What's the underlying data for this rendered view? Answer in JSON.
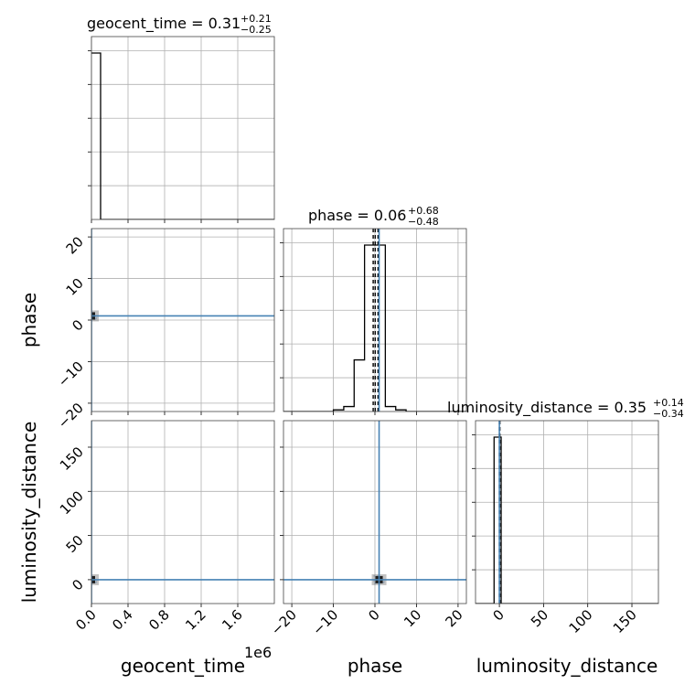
{
  "colors": {
    "truth": "#4682b4",
    "hist": "#000000",
    "grid": "#b0b0b0",
    "density": "#7a7a7a",
    "points": "#5b8fc7"
  },
  "titles": {
    "geocent_time": {
      "name": "geocent_time",
      "median": "0.31",
      "plus": "+0.21",
      "minus": "−0.25"
    },
    "phase": {
      "name": "phase",
      "median": "0.06",
      "plus": "+0.68",
      "minus": "−0.48"
    },
    "luminosity_distance": {
      "name": "luminosity_distance",
      "median": "0.35",
      "plus": "+0.14",
      "minus": "−0.34"
    }
  },
  "axis_labels": {
    "x_geocent_time": "geocent_time",
    "x_phase": "phase",
    "x_luminosity_distance": "luminosity_distance",
    "y_phase": "phase",
    "y_luminosity_distance": "luminosity_distance"
  },
  "offset_text": "1e6",
  "chart_data": {
    "type": "corner",
    "parameters": [
      "geocent_time",
      "phase",
      "luminosity_distance"
    ],
    "truths": {
      "geocent_time": 0,
      "phase": 1,
      "luminosity_distance": 0
    },
    "quantile_lines": {
      "phase": [
        -0.42,
        0.06,
        0.74
      ],
      "luminosity_distance": [
        0.01,
        0.35,
        0.49
      ]
    },
    "ranges": {
      "geocent_time": [
        0,
        2000000
      ],
      "phase": [
        -22,
        22
      ],
      "luminosity_distance": [
        -27,
        180
      ]
    },
    "ticks": {
      "geocent_time": [
        0,
        400000,
        800000,
        1200000,
        1600000
      ],
      "phase": [
        -20,
        -10,
        0,
        10,
        20
      ],
      "luminosity_distance": [
        0,
        50,
        100,
        150
      ]
    },
    "tick_labels": {
      "geocent_time": [
        "0.0",
        "0.4",
        "0.8",
        "1.2",
        "1.6"
      ],
      "phase": [
        "−20",
        "−10",
        "0",
        "10",
        "20"
      ],
      "luminosity_distance": [
        "0",
        "50",
        "100",
        "150"
      ]
    },
    "histograms": {
      "geocent_time": {
        "edges": [
          0,
          100000,
          2000000
        ],
        "heights": [
          1.0,
          0.0
        ]
      },
      "phase": {
        "edges": [
          -22,
          -10,
          -7.5,
          -5,
          -2.5,
          0,
          2.5,
          5,
          7.5,
          22
        ],
        "heights": [
          0.0,
          0.01,
          0.03,
          0.31,
          1.0,
          1.0,
          0.03,
          0.01,
          0.0
        ]
      },
      "luminosity_distance": {
        "edges": [
          -27,
          -6,
          2,
          180
        ],
        "heights": [
          0.0,
          1.0,
          0.0
        ]
      }
    },
    "diagonal_ytick_count": 5,
    "grid": true
  }
}
